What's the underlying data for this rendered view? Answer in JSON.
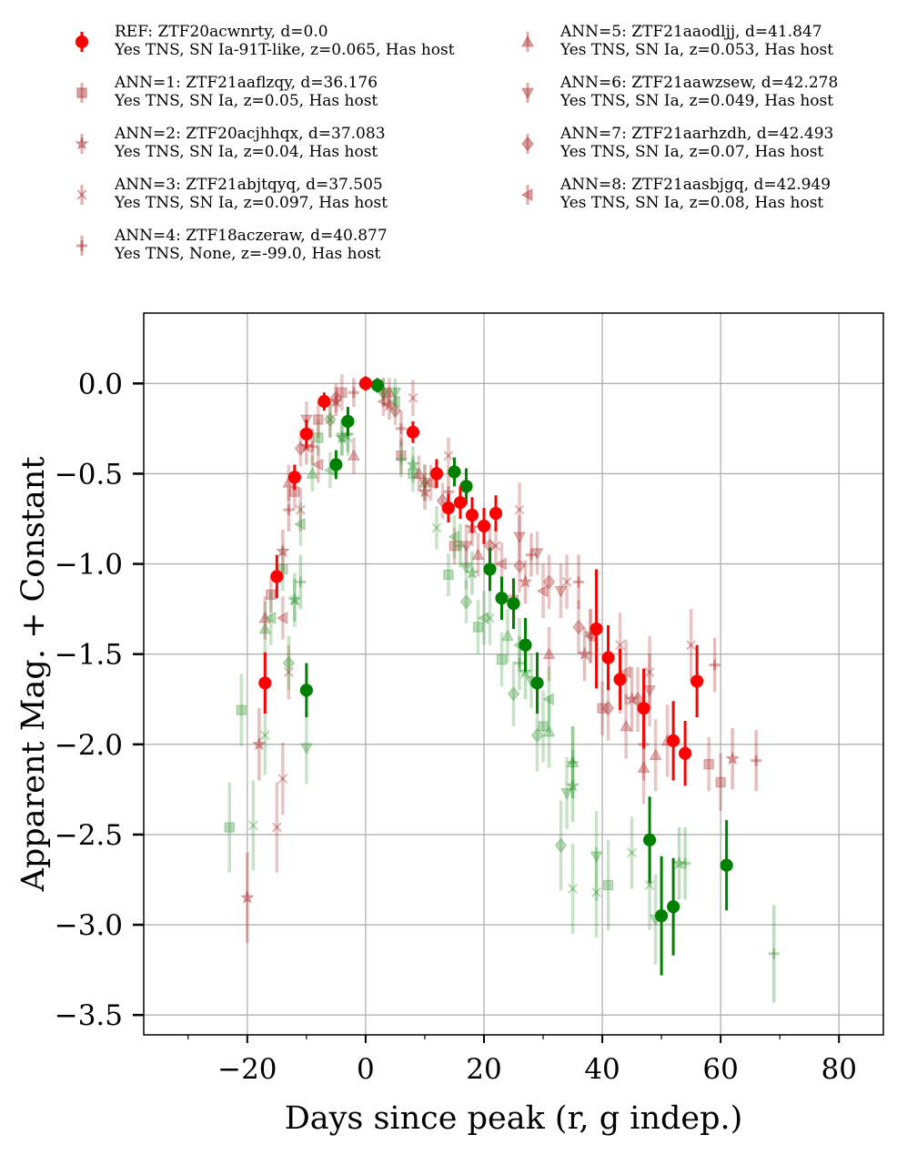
{
  "chart_data": {
    "type": "scatter",
    "xlabel": "Days since peak (r, g indep.)",
    "ylabel": "Apparent Mag. + Constant",
    "xlim": [
      -37.5,
      87.5
    ],
    "ylim": [
      -3.61,
      0.39
    ],
    "y_inverted": false,
    "grid": true,
    "legend_position": "top, above plot, two columns",
    "xticks": [
      -20,
      0,
      20,
      40,
      60,
      80
    ],
    "xtick_labels": [
      "−20",
      "0",
      "20",
      "40",
      "60",
      "80"
    ],
    "yticks": [
      0.0,
      -0.5,
      -1.0,
      -1.5,
      -2.0,
      -2.5,
      -3.0,
      -3.5
    ],
    "ytick_labels": [
      "0.0",
      "−0.5",
      "−1.0",
      "−1.5",
      "−2.0",
      "−2.5",
      "−3.0",
      "−3.5"
    ],
    "band_colors": {
      "r": "#ff0000",
      "g": "#008000",
      "ann_r": "#b03030",
      "ann_g": "#3a9a3a"
    },
    "series": [
      {
        "name": "REF: ZTF20acwnrty, d=0.0",
        "detail": "Yes TNS, SN Ia-91T-like, z=0.065, Has host",
        "marker": "circle",
        "alpha": 1.0,
        "r": [
          [
            -17,
            -1.66,
            0.17
          ],
          [
            -15,
            -1.07,
            0.12
          ],
          [
            -12,
            -0.52,
            0.07
          ],
          [
            -10,
            -0.28,
            0.08
          ],
          [
            -7,
            -0.1,
            0.05
          ],
          [
            0,
            0.0,
            0.04
          ],
          [
            8,
            -0.27,
            0.06
          ],
          [
            12,
            -0.5,
            0.08
          ],
          [
            14,
            -0.69,
            0.08
          ],
          [
            16,
            -0.66,
            0.09
          ],
          [
            18,
            -0.73,
            0.1
          ],
          [
            20,
            -0.79,
            0.1
          ],
          [
            22,
            -0.72,
            0.1
          ],
          [
            39,
            -1.36,
            0.33
          ],
          [
            41,
            -1.52,
            0.18
          ],
          [
            43,
            -1.64,
            0.17
          ],
          [
            47,
            -1.8,
            0.22
          ],
          [
            52,
            -1.98,
            0.22
          ],
          [
            54,
            -2.05,
            0.18
          ],
          [
            56,
            -1.65,
            0.2
          ]
        ],
        "g": [
          [
            -10,
            -1.7,
            0.15
          ],
          [
            -5,
            -0.45,
            0.08
          ],
          [
            -3,
            -0.21,
            0.08
          ],
          [
            2,
            -0.01,
            0.04
          ],
          [
            15,
            -0.49,
            0.08
          ],
          [
            17,
            -0.57,
            0.1
          ],
          [
            21,
            -1.03,
            0.12
          ],
          [
            23,
            -1.19,
            0.12
          ],
          [
            25,
            -1.22,
            0.14
          ],
          [
            27,
            -1.45,
            0.15
          ],
          [
            29,
            -1.66,
            0.17
          ],
          [
            48,
            -2.53,
            0.24
          ],
          [
            50,
            -2.95,
            0.33
          ],
          [
            52,
            -2.9,
            0.27
          ],
          [
            61,
            -2.67,
            0.25
          ]
        ]
      },
      {
        "name": "ANN=1: ZTF21aaflzqy, d=36.176",
        "detail": "Yes TNS, SN Ia, z=0.05, Has host",
        "marker": "square",
        "alpha": 0.35,
        "r": [
          [
            -16,
            -1.17,
            0.1
          ],
          [
            -12,
            -0.6,
            0.1
          ],
          [
            -8,
            -0.2,
            0.1
          ],
          [
            -4,
            -0.05,
            0.1
          ],
          [
            6,
            -0.4,
            0.1
          ],
          [
            15,
            -0.9,
            0.1
          ],
          [
            25,
            -1.2,
            0.12
          ],
          [
            40,
            -1.8,
            0.15
          ],
          [
            58,
            -2.11,
            0.15
          ],
          [
            60,
            -2.21,
            0.16
          ]
        ],
        "g": [
          [
            -23,
            -2.46,
            0.25
          ],
          [
            -21,
            -1.81,
            0.2
          ],
          [
            -14,
            -1.03,
            0.12
          ],
          [
            -8,
            -0.3,
            0.1
          ],
          [
            8,
            -0.5,
            0.1
          ],
          [
            14,
            -1.06,
            0.12
          ],
          [
            19,
            -1.35,
            0.15
          ],
          [
            23,
            -1.53,
            0.15
          ],
          [
            30,
            -1.9,
            0.2
          ],
          [
            41,
            -2.78,
            0.25
          ]
        ]
      },
      {
        "name": "ANN=2: ZTF20acjhhqx, d=37.083",
        "detail": "Yes TNS, SN Ia, z=0.04, Has host",
        "marker": "star",
        "alpha": 0.4,
        "r": [
          [
            -20,
            -2.85,
            0.25
          ],
          [
            -18,
            -2.0,
            0.2
          ],
          [
            -14,
            -0.93,
            0.12
          ],
          [
            -10,
            -0.35,
            0.1
          ],
          [
            -5,
            -0.1,
            0.08
          ],
          [
            4,
            -0.12,
            0.08
          ],
          [
            10,
            -0.6,
            0.1
          ],
          [
            18,
            -0.8,
            0.1
          ],
          [
            27,
            -1.1,
            0.12
          ],
          [
            37,
            -1.5,
            0.15
          ],
          [
            45,
            -1.75,
            0.18
          ],
          [
            62,
            -2.08,
            0.17
          ]
        ],
        "g": [
          [
            -12,
            -1.2,
            0.12
          ],
          [
            -4,
            -0.3,
            0.1
          ],
          [
            8,
            -0.45,
            0.1
          ],
          [
            18,
            -1.05,
            0.12
          ],
          [
            27,
            -1.6,
            0.15
          ],
          [
            35,
            -2.23,
            0.2
          ],
          [
            53,
            -2.66,
            0.2
          ]
        ]
      },
      {
        "name": "ANN=3: ZTF21abjtqyq, d=37.505",
        "detail": "Yes TNS, SN Ia, z=0.097, Has host",
        "marker": "x",
        "alpha": 0.35,
        "r": [
          [
            -15,
            -2.46,
            0.25
          ],
          [
            -14,
            -2.19,
            0.2
          ],
          [
            -13,
            -1.6,
            0.15
          ],
          [
            -11,
            -0.7,
            0.12
          ],
          [
            -6,
            -0.2,
            0.1
          ],
          [
            8,
            -0.08,
            0.1
          ],
          [
            14,
            -0.4,
            0.1
          ],
          [
            22,
            -0.9,
            0.12
          ],
          [
            26,
            -0.7,
            0.15
          ],
          [
            34,
            -1.1,
            0.15
          ],
          [
            43,
            -1.45,
            0.18
          ],
          [
            48,
            -1.6,
            0.2
          ],
          [
            55,
            -1.45,
            0.2
          ]
        ],
        "g": [
          [
            -19,
            -2.45,
            0.25
          ],
          [
            -17,
            -1.95,
            0.22
          ],
          [
            -12,
            -1.2,
            0.15
          ],
          [
            -3,
            -0.3,
            0.1
          ],
          [
            12,
            -0.8,
            0.12
          ],
          [
            21,
            -1.3,
            0.15
          ],
          [
            35,
            -2.8,
            0.25
          ],
          [
            39,
            -2.82,
            0.25
          ],
          [
            45,
            -2.6,
            0.2
          ],
          [
            48,
            -2.78,
            0.25
          ]
        ]
      },
      {
        "name": "ANN=4: ZTF18aczeraw, d=40.877",
        "detail": "Yes TNS, None, z=-99.0, Has host",
        "marker": "plus",
        "alpha": 0.4,
        "r": [
          [
            -13,
            -0.7,
            0.12
          ],
          [
            -9,
            -0.35,
            0.1
          ],
          [
            -2,
            -0.05,
            0.08
          ],
          [
            6,
            -0.25,
            0.1
          ],
          [
            14,
            -0.6,
            0.1
          ],
          [
            28,
            -0.95,
            0.12
          ],
          [
            36,
            -1.1,
            0.15
          ],
          [
            47,
            -2.0,
            0.2
          ],
          [
            59,
            -1.56,
            0.15
          ],
          [
            66,
            -2.09,
            0.17
          ]
        ],
        "g": [
          [
            -11,
            -1.1,
            0.15
          ],
          [
            -3,
            -0.28,
            0.1
          ],
          [
            6,
            -0.42,
            0.1
          ],
          [
            16,
            -0.9,
            0.12
          ],
          [
            26,
            -1.55,
            0.15
          ],
          [
            35,
            -2.1,
            0.2
          ],
          [
            54,
            -2.66,
            0.2
          ],
          [
            69,
            -3.16,
            0.27
          ]
        ]
      },
      {
        "name": "ANN=5: ZTF21aaodljj, d=41.847",
        "detail": "Yes TNS, SN Ia, z=0.053, Has host",
        "marker": "triangle-up",
        "alpha": 0.35,
        "r": [
          [
            -17,
            -1.3,
            0.12
          ],
          [
            -13,
            -0.55,
            0.1
          ],
          [
            -2,
            -0.4,
            0.1
          ],
          [
            4,
            -0.05,
            0.08
          ],
          [
            9,
            -0.5,
            0.1
          ],
          [
            19,
            -0.95,
            0.12
          ],
          [
            31,
            -1.5,
            0.15
          ],
          [
            44,
            -1.9,
            0.18
          ],
          [
            47,
            -2.13,
            0.2
          ],
          [
            49,
            -2.06,
            0.2
          ],
          [
            51,
            -1.98,
            0.2
          ]
        ],
        "g": [
          [
            -17,
            -1.36,
            0.15
          ],
          [
            -9,
            -0.5,
            0.1
          ],
          [
            10,
            -0.55,
            0.1
          ],
          [
            24,
            -1.4,
            0.15
          ],
          [
            31,
            -1.93,
            0.2
          ],
          [
            35,
            -2.1,
            0.2
          ]
        ]
      },
      {
        "name": "ANN=6: ZTF21aawzsew, d=42.278",
        "detail": "Yes TNS, SN Ia, z=0.049, Has host",
        "marker": "triangle-down",
        "alpha": 0.35,
        "r": [
          [
            -10,
            -0.2,
            0.1
          ],
          [
            3,
            -0.05,
            0.08
          ],
          [
            10,
            -0.55,
            0.1
          ],
          [
            17,
            -0.9,
            0.12
          ],
          [
            26,
            -0.85,
            0.12
          ],
          [
            29,
            -0.94,
            0.12
          ],
          [
            33,
            -1.15,
            0.15
          ],
          [
            38,
            -1.4,
            0.15
          ],
          [
            43,
            -1.65,
            0.18
          ],
          [
            48,
            -1.7,
            0.2
          ]
        ],
        "g": [
          [
            -10,
            -2.02,
            0.2
          ],
          [
            -4,
            -0.3,
            0.1
          ],
          [
            5,
            -0.05,
            0.08
          ],
          [
            17,
            -1.02,
            0.12
          ],
          [
            28,
            -1.65,
            0.15
          ],
          [
            34,
            -2.27,
            0.2
          ],
          [
            39,
            -2.62,
            0.25
          ],
          [
            49,
            -2.97,
            0.25
          ]
        ]
      },
      {
        "name": "ANN=7: ZTF21aarhzdh, d=42.493",
        "detail": "Yes TNS, SN Ia, z=0.07, Has host",
        "marker": "diamond",
        "alpha": 0.35,
        "r": [
          [
            -11,
            -0.36,
            0.1
          ],
          [
            -5,
            -0.08,
            0.08
          ],
          [
            5,
            -0.15,
            0.08
          ],
          [
            13,
            -0.65,
            0.1
          ],
          [
            21,
            -0.9,
            0.12
          ],
          [
            26,
            -1.01,
            0.15
          ],
          [
            31,
            -1.1,
            0.15
          ],
          [
            36,
            -1.35,
            0.15
          ],
          [
            41,
            -1.8,
            0.18
          ],
          [
            46,
            -1.75,
            0.18
          ]
        ],
        "g": [
          [
            -13,
            -1.55,
            0.15
          ],
          [
            -6,
            -0.2,
            0.1
          ],
          [
            3,
            -0.05,
            0.08
          ],
          [
            17,
            -1.21,
            0.12
          ],
          [
            25,
            -1.72,
            0.18
          ],
          [
            29,
            -1.95,
            0.2
          ],
          [
            33,
            -2.56,
            0.25
          ]
        ]
      },
      {
        "name": "ANN=8: ZTF21aasbjgq, d=42.949",
        "detail": "Yes TNS, SN Ia, z=0.08, Has host",
        "marker": "triangle-left",
        "alpha": 0.35,
        "r": [
          [
            -14,
            -1.3,
            0.12
          ],
          [
            -8,
            -0.45,
            0.1
          ],
          [
            3,
            -0.1,
            0.08
          ],
          [
            11,
            -0.55,
            0.1
          ],
          [
            23,
            -1.0,
            0.12
          ],
          [
            30,
            -1.15,
            0.15
          ],
          [
            38,
            -1.4,
            0.15
          ],
          [
            44,
            -1.6,
            0.18
          ]
        ],
        "g": [
          [
            -16,
            -1.3,
            0.15
          ],
          [
            -11,
            -0.78,
            0.12
          ],
          [
            -6,
            -0.48,
            0.1
          ],
          [
            5,
            -0.1,
            0.08
          ],
          [
            15,
            -0.85,
            0.12
          ],
          [
            20,
            -1.3,
            0.15
          ],
          [
            26,
            -1.45,
            0.15
          ],
          [
            31,
            -1.75,
            0.18
          ]
        ]
      }
    ]
  }
}
